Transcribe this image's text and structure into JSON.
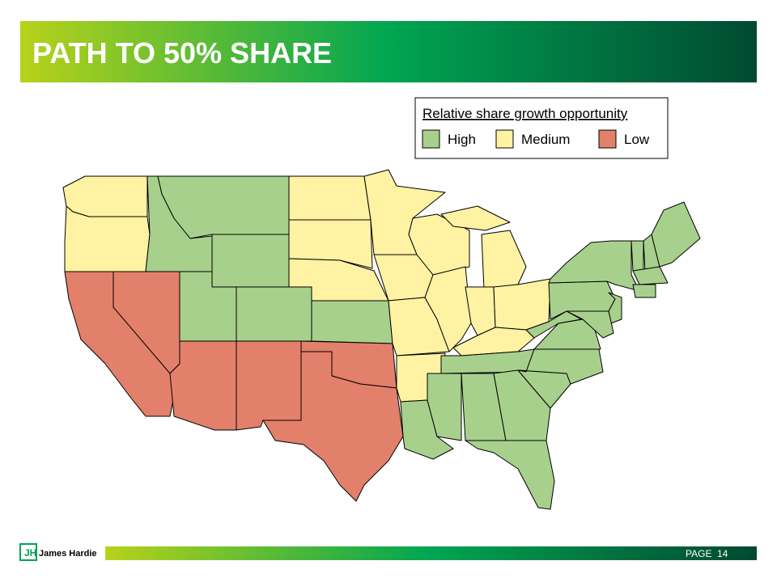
{
  "header": {
    "title": "PATH TO 50% SHARE"
  },
  "legend": {
    "title": "Relative share growth opportunity",
    "items": [
      {
        "label": "High",
        "color": "#a8d08d"
      },
      {
        "label": "Medium",
        "color": "#fff2a3"
      },
      {
        "label": "Low",
        "color": "#e2806b"
      }
    ]
  },
  "footer": {
    "brand": "James Hardie",
    "page_label": "PAGE",
    "page_number": 14
  }
}
